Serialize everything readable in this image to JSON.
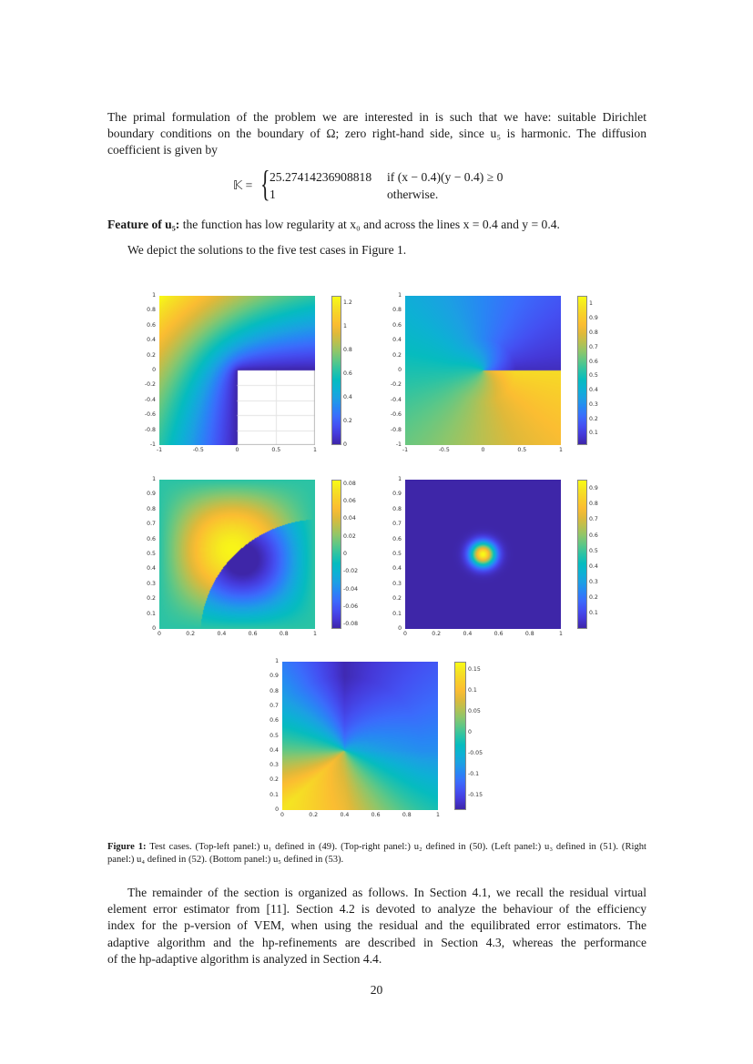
{
  "page": {
    "number": "20",
    "paragraphs": {
      "intro_lines": [
        "The primal formulation of the problem we are interested in is such that we have: suitable Dirichlet",
        "boundary conditions on the boundary of Ω; zero right-hand side, since u₅ is harmonic.  The diffusion",
        "coefficient is given by"
      ],
      "equation": {
        "lhs": "𝕂 =",
        "case1_value": "25.27414236908818",
        "case1_condition": "if (x − 0.4)(y − 0.4) ≥ 0",
        "case2_value": "1",
        "case2_condition": "otherwise."
      },
      "feature_label": "Feature of u₅:",
      "feature_text": " the function has low regularity at x₀ and across the lines x = 0.4 and y = 0.4.",
      "depict_text": "We depict the solutions to the five test cases in Figure 1.",
      "remainder_lines": [
        "The remainder of the section is organized as follows. In Section 4.1, we recall the residual virtual",
        "element error estimator from [11]. Section 4.2 is devoted to analyze the behaviour of the efficiency",
        "index for the p-version of VEM, when using the residual and the equilibrated error estimators. The",
        "adaptive algorithm and the hp-refinements are described in Section 4.3, whereas the performance",
        "of the hp-adaptive algorithm is analyzed in Section 4.4."
      ]
    },
    "figure": {
      "caption_label": "Figure 1:",
      "caption_text": " Test cases. (Top-left panel:) u₁ defined in (49). (Top-right panel:) u₂ defined in (50). (Left panel:) u₃ defined in (51). (Right panel:) u₄ defined in (52). (Bottom panel:) u₅ defined in (53)."
    }
  },
  "chart_data": [
    {
      "type": "heatmap",
      "title": "u1 (Top-left panel)",
      "x_ticks": [
        "-1",
        "-0.5",
        "0",
        "0.5",
        "1"
      ],
      "y_ticks": [
        "1",
        "0.8",
        "0.6",
        "0.4",
        "0.2",
        "0",
        "-0.2",
        "-0.4",
        "-0.6",
        "-0.8",
        "-1"
      ],
      "xlim": [
        -1,
        1
      ],
      "ylim": [
        -1,
        1
      ],
      "colorbar_ticks": [
        "1.2",
        "1",
        "0.8",
        "0.6",
        "0.4",
        "0.2",
        "0"
      ],
      "colorbar_range": [
        0,
        1.26
      ],
      "domain": "L-shaped (lower-right quadrant excluded)",
      "colormap": "parula"
    },
    {
      "type": "heatmap",
      "title": "u2 (Top-right panel)",
      "x_ticks": [
        "-1",
        "-0.5",
        "0",
        "0.5",
        "1"
      ],
      "y_ticks": [
        "1",
        "0.8",
        "0.6",
        "0.4",
        "0.2",
        "0",
        "-0.2",
        "-0.4",
        "-0.6",
        "-0.8",
        "-1"
      ],
      "xlim": [
        -1,
        1
      ],
      "ylim": [
        -1,
        1
      ],
      "colorbar_ticks": [
        "1",
        "0.9",
        "0.8",
        "0.7",
        "0.6",
        "0.5",
        "0.4",
        "0.3",
        "0.2",
        "0.1"
      ],
      "colorbar_range": [
        0.02,
        1.06
      ],
      "domain": "slit square (slit along y=0, x in [0,1])",
      "colormap": "parula"
    },
    {
      "type": "heatmap",
      "title": "u3 (Left panel)",
      "x_ticks": [
        "0",
        "0.2",
        "0.4",
        "0.6",
        "0.8",
        "1"
      ],
      "y_ticks": [
        "1",
        "0.9",
        "0.8",
        "0.7",
        "0.6",
        "0.5",
        "0.4",
        "0.3",
        "0.2",
        "0.1",
        "0"
      ],
      "xlim": [
        0,
        1
      ],
      "ylim": [
        0,
        1
      ],
      "colorbar_ticks": [
        "0.08",
        "0.06",
        "0.04",
        "0.02",
        "0",
        "-0.02",
        "-0.04",
        "-0.06",
        "-0.08"
      ],
      "colorbar_range": [
        -0.085,
        0.085
      ],
      "colormap": "parula"
    },
    {
      "type": "heatmap",
      "title": "u4 (Right panel)",
      "x_ticks": [
        "0",
        "0.2",
        "0.4",
        "0.6",
        "0.8",
        "1"
      ],
      "y_ticks": [
        "1",
        "0.9",
        "0.8",
        "0.7",
        "0.6",
        "0.5",
        "0.4",
        "0.3",
        "0.2",
        "0.1",
        "0"
      ],
      "xlim": [
        0,
        1
      ],
      "ylim": [
        0,
        1
      ],
      "colorbar_ticks": [
        "0.9",
        "0.8",
        "0.7",
        "0.6",
        "0.5",
        "0.4",
        "0.3",
        "0.2",
        "0.1"
      ],
      "colorbar_range": [
        0,
        0.96
      ],
      "peak": {
        "x": 0.5,
        "y": 0.5
      },
      "colormap": "parula"
    },
    {
      "type": "heatmap",
      "title": "u5 (Bottom panel)",
      "x_ticks": [
        "0",
        "0.2",
        "0.4",
        "0.6",
        "0.8",
        "1"
      ],
      "y_ticks": [
        "1",
        "0.9",
        "0.8",
        "0.7",
        "0.6",
        "0.5",
        "0.4",
        "0.3",
        "0.2",
        "0.1",
        "0"
      ],
      "xlim": [
        0,
        1
      ],
      "ylim": [
        0,
        1
      ],
      "colorbar_ticks": [
        "0.15",
        "0.1",
        "0.05",
        "0",
        "-0.05",
        "-0.1",
        "-0.15"
      ],
      "colorbar_range": [
        -0.185,
        0.17
      ],
      "singular_point": {
        "x": 0.4,
        "y": 0.4
      },
      "colormap": "parula"
    }
  ]
}
